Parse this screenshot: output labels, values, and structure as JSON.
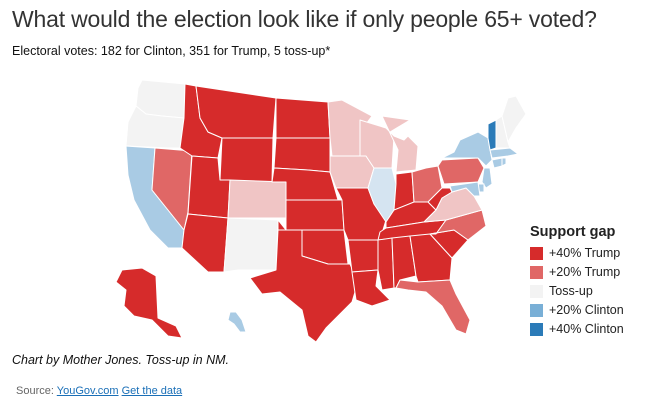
{
  "title": "What would the election look like if only people 65+ voted?",
  "subtitle": "Electoral votes: 182 for Clinton, 351 for Trump, 5 toss-up*",
  "legend": {
    "title": "Support gap",
    "items": [
      {
        "label": "+40% Trump",
        "color": "#d62b2b"
      },
      {
        "label": "+20% Trump",
        "color": "#e06766"
      },
      {
        "label": "Toss-up",
        "color": "#f3f3f3"
      },
      {
        "label": "+20% Clinton",
        "color": "#79afd6"
      },
      {
        "label": "+40% Clinton",
        "color": "#2b7bb8"
      }
    ]
  },
  "categories": {
    "trump40": "#d62b2b",
    "trump20": "#e06766",
    "trump10": "#f0c5c5",
    "tossup": "#f3f3f3",
    "clinton10": "#d5e4f1",
    "clinton20": "#a9cbe4",
    "clinton40": "#2b7bb8"
  },
  "states": {
    "WA": "tossup",
    "OR": "tossup",
    "CA": "clinton20",
    "NV": "trump20",
    "ID": "trump40",
    "MT": "trump40",
    "WY": "trump40",
    "UT": "trump40",
    "AZ": "trump40",
    "CO": "trump10",
    "NM": "tossup",
    "ND": "trump40",
    "SD": "trump40",
    "NE": "trump40",
    "KS": "trump40",
    "OK": "trump40",
    "TX": "trump40",
    "MN": "trump10",
    "IA": "trump10",
    "MO": "trump40",
    "AR": "trump40",
    "LA": "trump40",
    "WI": "trump10",
    "IL": "clinton10",
    "MI": "trump10",
    "IN": "trump40",
    "OH": "trump20",
    "KY": "trump40",
    "TN": "trump40",
    "MS": "trump40",
    "AL": "trump40",
    "GA": "trump40",
    "FL": "trump20",
    "SC": "trump40",
    "NC": "trump20",
    "VA": "trump10",
    "WV": "trump40",
    "PA": "trump20",
    "NY": "clinton20",
    "VT": "clinton40",
    "NH": "tossup",
    "ME": "tossup",
    "MA": "clinton20",
    "CT": "clinton20",
    "RI": "clinton20",
    "NJ": "clinton20",
    "DE": "clinton20",
    "MD": "clinton20",
    "AK": "trump40",
    "HI": "clinton20"
  },
  "note": "Chart by Mother Jones. Toss-up in NM.",
  "source": {
    "prefix": "Source:",
    "link1": "YouGov.com",
    "link2": "Get the data"
  }
}
